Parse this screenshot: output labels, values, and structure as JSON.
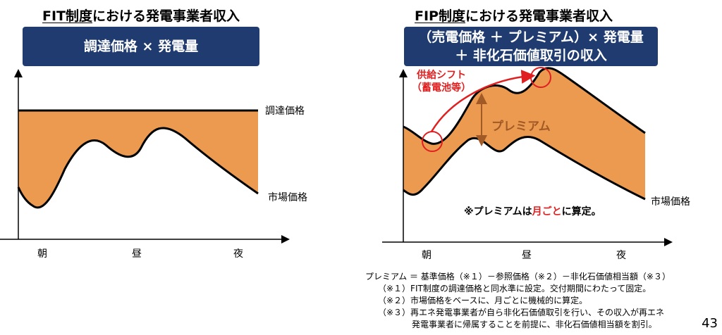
{
  "left": {
    "title_highlight": "FIT制度",
    "title_rest": "における発電事業者収入",
    "header_line1": "調達価格 × 発電量",
    "price_label": "調達価格",
    "market_label": "市場価格",
    "x_labels": [
      "朝",
      "昼",
      "夜"
    ]
  },
  "right": {
    "title_highlight": "FIP制度",
    "title_rest": "における発電事業者収入",
    "header_line1": "（売電価格 ＋ プレミアム）× 発電量",
    "header_line2": "＋ 非化石価値取引の収入",
    "shift_label_1": "供給シフト",
    "shift_label_2": "（蓄電池等）",
    "premium_label": "プレミアム",
    "market_label": "市場価格",
    "monthly_pre": "※プレミアムは",
    "monthly_hl": "月ごと",
    "monthly_post": "に算定。",
    "x_labels": [
      "朝",
      "昼",
      "夜"
    ]
  },
  "notes": [
    "プレミアム ＝ 基準価格（※１）－参照価格（※２）－非化石価値相当額（※３）",
    "（※１）FIT制度の調達価格と同水準に設定。交付期間にわたって固定。",
    "（※２）市場価格をベースに、月ごとに機械的に算定。",
    "（※３）再エネ発電事業者が自ら非化石価値取引を行い、その収入が再エネ",
    "発電事業者に帰属することを前提に、非化石価値相当額を割引。"
  ],
  "page_number": "43",
  "colors": {
    "fill": "#ec9a50",
    "navy": "#1f3b6f",
    "red": "#e02020",
    "premium_text": "#a15a26"
  }
}
